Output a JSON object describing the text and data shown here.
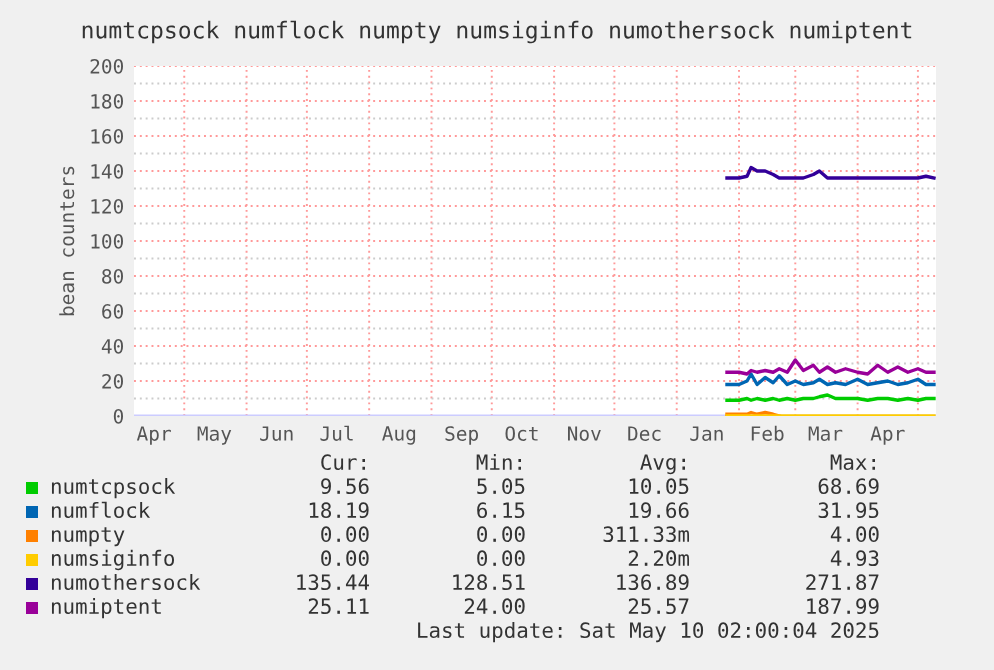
{
  "chart_data": {
    "type": "line",
    "title": "numtcpsock numflock numpty numsiginfo numothersock numiptent",
    "ylabel": "bean counters",
    "xlim": [
      "2024-04-06",
      "2025-05-10"
    ],
    "xticks": [
      {
        "value": "2024-04-16",
        "label": "Apr"
      },
      {
        "value": "2024-05-01",
        "label": null
      },
      {
        "value": "2024-05-16",
        "label": "May"
      },
      {
        "value": "2024-06-01",
        "label": null
      },
      {
        "value": "2024-06-16",
        "label": "Jun"
      },
      {
        "value": "2024-07-01",
        "label": null
      },
      {
        "value": "2024-07-16",
        "label": "Jul"
      },
      {
        "value": "2024-08-01",
        "label": null
      },
      {
        "value": "2024-08-16",
        "label": "Aug"
      },
      {
        "value": "2024-09-01",
        "label": null
      },
      {
        "value": "2024-09-16",
        "label": "Sep"
      },
      {
        "value": "2024-10-01",
        "label": null
      },
      {
        "value": "2024-10-16",
        "label": "Oct"
      },
      {
        "value": "2024-11-01",
        "label": null
      },
      {
        "value": "2024-11-16",
        "label": "Nov"
      },
      {
        "value": "2024-12-01",
        "label": null
      },
      {
        "value": "2024-12-16",
        "label": "Dec"
      },
      {
        "value": "2025-01-01",
        "label": null
      },
      {
        "value": "2025-01-16",
        "label": "Jan"
      },
      {
        "value": "2025-02-01",
        "label": null
      },
      {
        "value": "2025-02-15",
        "label": "Feb"
      },
      {
        "value": "2025-03-01",
        "label": null
      },
      {
        "value": "2025-03-16",
        "label": "Mar"
      },
      {
        "value": "2025-04-01",
        "label": null
      },
      {
        "value": "2025-04-16",
        "label": "Apr"
      },
      {
        "value": "2025-05-01",
        "label": null
      }
    ],
    "ylim": [
      0,
      200
    ],
    "yticks": [
      0,
      {
        "value": 10,
        "label": null
      },
      20,
      {
        "value": 30,
        "label": null
      },
      40,
      {
        "value": 50,
        "label": null
      },
      60,
      {
        "value": 70,
        "label": null
      },
      80,
      {
        "value": 90,
        "label": null
      },
      100,
      {
        "value": 110,
        "label": null
      },
      120,
      {
        "value": 130,
        "label": null
      },
      140,
      {
        "value": 150,
        "label": null
      },
      160,
      {
        "value": 170,
        "label": null
      },
      180,
      {
        "value": 190,
        "label": null
      },
      200
    ],
    "grid": true,
    "legend": "bottom",
    "marker": "none",
    "line_style": "solid",
    "x": [
      "2025-01-26",
      "2025-02-01",
      "2025-02-05",
      "2025-02-07",
      "2025-02-10",
      "2025-02-14",
      "2025-02-18",
      "2025-02-21",
      "2025-02-25",
      "2025-03-01",
      "2025-03-05",
      "2025-03-10",
      "2025-03-13",
      "2025-03-17",
      "2025-03-21",
      "2025-03-26",
      "2025-04-01",
      "2025-04-06",
      "2025-04-11",
      "2025-04-16",
      "2025-04-21",
      "2025-04-26",
      "2025-05-01",
      "2025-05-05",
      "2025-05-09"
    ],
    "series": [
      {
        "name": "numtcpsock",
        "color": "#00cc00",
        "values": [
          9,
          9,
          10,
          9,
          10,
          9,
          10,
          9,
          10,
          9,
          10,
          10,
          11,
          12,
          10,
          10,
          10,
          9,
          10,
          10,
          9,
          10,
          9,
          10,
          10
        ]
      },
      {
        "name": "numflock",
        "color": "#0066b3",
        "values": [
          18,
          18,
          20,
          24,
          18,
          22,
          19,
          23,
          18,
          20,
          18,
          19,
          21,
          18,
          19,
          18,
          21,
          18,
          19,
          20,
          18,
          19,
          21,
          18,
          18
        ]
      },
      {
        "name": "numpty",
        "color": "#ff8000",
        "values": [
          1,
          1,
          1,
          2,
          1,
          2,
          1,
          0,
          null,
          null,
          null,
          null,
          null,
          null,
          null,
          null,
          null,
          null,
          null,
          null,
          null,
          null,
          null,
          null,
          null
        ]
      },
      {
        "name": "numsiginfo",
        "color": "#ffcc00",
        "values": [
          0,
          0,
          0,
          0,
          0,
          0,
          0,
          0,
          0,
          0,
          0,
          0,
          0,
          0,
          0,
          0,
          0,
          0,
          0,
          0,
          0,
          0,
          0,
          0,
          0
        ]
      },
      {
        "name": "numothersock",
        "color": "#330099",
        "values": [
          136,
          136,
          137,
          142,
          140,
          140,
          138,
          136,
          136,
          136,
          136,
          138,
          140,
          136,
          136,
          136,
          136,
          136,
          136,
          136,
          136,
          136,
          136,
          137,
          136
        ]
      },
      {
        "name": "numiptent",
        "color": "#990099",
        "values": [
          25,
          25,
          24,
          26,
          25,
          26,
          25,
          27,
          25,
          32,
          26,
          29,
          25,
          28,
          25,
          27,
          25,
          24,
          29,
          25,
          28,
          25,
          27,
          25,
          25
        ]
      }
    ],
    "annotations": [
      "Cur:",
      "Min:",
      "Avg:",
      "Max:",
      "9.56",
      "5.05",
      "10.05",
      "68.69",
      "18.19",
      "6.15",
      "19.66",
      "31.95",
      "0.00",
      "0.00",
      "311.33m",
      "4.00",
      "0.00",
      "0.00",
      "2.20m",
      "4.93",
      "135.44",
      "128.51",
      "136.89",
      "271.87",
      "25.11",
      "24.00",
      "25.57",
      "187.99",
      "Last update: Sat May 10 02:00:04 2025"
    ]
  }
}
